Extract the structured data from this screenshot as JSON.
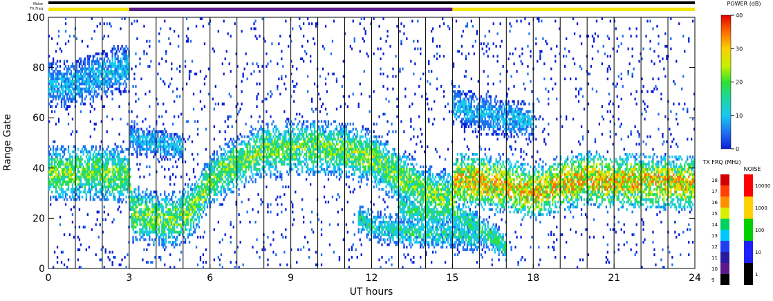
{
  "chart_data": {
    "type": "heatmap",
    "xlabel": "UT hours",
    "ylabel": "Range Gate",
    "x_ticks": [
      "0",
      "3",
      "6",
      "9",
      "12",
      "15",
      "18",
      "21",
      "24"
    ],
    "y_ticks": [
      "0",
      "20",
      "40",
      "60",
      "80",
      "100"
    ],
    "xlim": [
      0,
      24
    ],
    "ylim": [
      0,
      100
    ],
    "strip_labels": {
      "noise": "Noise",
      "tx_freq": "TX Freq"
    },
    "tx_freq_segments": [
      {
        "start": 0,
        "end": 3,
        "color": "#f5e400"
      },
      {
        "start": 3,
        "end": 15,
        "color": "#5a1a8a"
      },
      {
        "start": 15,
        "end": 24,
        "color": "#f5e400"
      }
    ],
    "scan_boundaries_ut": [
      1,
      2,
      3,
      4,
      5,
      6,
      7,
      8,
      9,
      10,
      11,
      12,
      13,
      14,
      15,
      16,
      17,
      18,
      19,
      20,
      21,
      22,
      23,
      24
    ],
    "echo_bands": [
      {
        "t": [
          0,
          1,
          2,
          3,
          3.1,
          4,
          4.5,
          5,
          5.5,
          6,
          7,
          8,
          9,
          10,
          11,
          12,
          13,
          14,
          15,
          15.1,
          16,
          17,
          18,
          19,
          20,
          21,
          22,
          23,
          24
        ],
        "g": [
          38,
          38,
          38,
          37,
          22,
          20,
          19,
          21,
          26,
          35,
          42,
          47,
          48,
          48,
          47,
          44,
          37,
          30,
          28,
          35,
          35,
          33,
          30,
          34,
          36,
          34,
          35,
          34,
          34
        ]
      },
      {
        "t": [
          0,
          1,
          2,
          3
        ],
        "g": [
          73,
          74,
          77,
          80
        ]
      },
      {
        "t": [
          3,
          4,
          5
        ],
        "g": [
          52,
          50,
          48
        ]
      },
      {
        "t": [
          11.5,
          12,
          13,
          14,
          15,
          16
        ],
        "g": [
          20,
          17,
          15,
          14,
          14,
          12
        ]
      },
      {
        "t": [
          13,
          14,
          15,
          16,
          17
        ],
        "g": [
          24,
          22,
          22,
          16,
          8
        ]
      },
      {
        "t": [
          15,
          16,
          17,
          18
        ],
        "g": [
          65,
          62,
          60,
          58
        ]
      }
    ],
    "power_colorbar": {
      "title": "POWER (dB)",
      "ticks": [
        "0",
        "10",
        "20",
        "30",
        "40"
      ],
      "min": 0,
      "max": 40
    },
    "freq_colorbar": {
      "title": "TX FRQ (MHz)",
      "ticks": [
        "9",
        "10",
        "11",
        "12",
        "13",
        "14",
        "15",
        "16",
        "17",
        "18"
      ],
      "colors": [
        "#000000",
        "#5a1a8a",
        "#2a1aa0",
        "#2040f0",
        "#00c8ff",
        "#00d060",
        "#d8f000",
        "#ff9000",
        "#ff4000",
        "#d00000"
      ]
    },
    "noise_colorbar": {
      "title": "NOISE",
      "ticks": [
        "1",
        "10",
        "100",
        "1000",
        "10000"
      ],
      "colors": [
        "#000000",
        "#2020ff",
        "#00d000",
        "#ffd000",
        "#ff0000"
      ]
    }
  }
}
